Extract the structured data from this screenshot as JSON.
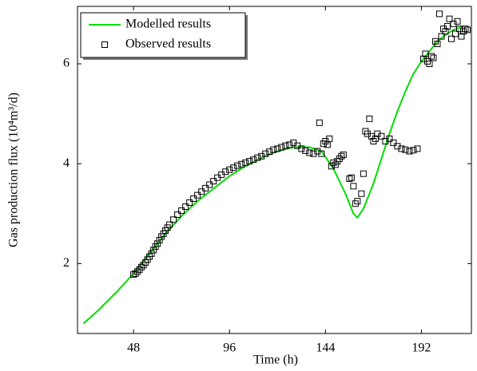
{
  "chart_data": {
    "type": "line",
    "xlabel": "Time (h)",
    "ylabel": "Gas production flux (10⁴m³/d)",
    "xlim": [
      20,
      217
    ],
    "xticks": [
      48,
      96,
      144,
      192
    ],
    "ylim": [
      0.6,
      7.15
    ],
    "yticks": [
      2,
      4,
      6
    ],
    "legend": "upper left",
    "series": [
      {
        "name": "Modelled results",
        "color": "#00dd00",
        "style": "line",
        "x": [
          23,
          30,
          40,
          48,
          56,
          64,
          72,
          80,
          88,
          96,
          104,
          112,
          120,
          128,
          136,
          142,
          148,
          154,
          158,
          160,
          163,
          168,
          172,
          176,
          180,
          184,
          188,
          192,
          196,
          200,
          204,
          208,
          213
        ],
        "values": [
          0.8,
          1.05,
          1.45,
          1.8,
          2.2,
          2.6,
          2.95,
          3.25,
          3.5,
          3.75,
          3.95,
          4.12,
          4.25,
          4.33,
          4.33,
          4.25,
          3.9,
          3.4,
          3.0,
          2.92,
          3.1,
          3.6,
          4.1,
          4.6,
          5.05,
          5.45,
          5.8,
          6.05,
          6.25,
          6.45,
          6.58,
          6.68,
          6.75
        ]
      },
      {
        "name": "Observed results",
        "color": "#000000",
        "style": "square",
        "x": [
          48,
          49,
          50,
          51,
          52,
          53,
          54,
          55,
          56,
          57,
          58,
          59,
          60,
          61,
          62,
          63,
          64,
          65,
          66,
          68,
          70,
          72,
          74,
          76,
          78,
          80,
          82,
          84,
          86,
          88,
          90,
          92,
          94,
          96,
          98,
          100,
          102,
          104,
          106,
          108,
          110,
          112,
          114,
          116,
          118,
          120,
          122,
          124,
          126,
          128,
          130,
          132,
          134,
          136,
          138,
          140,
          141,
          142,
          143,
          144,
          145,
          146,
          147,
          148,
          149,
          150,
          151,
          152,
          153,
          156,
          157,
          158,
          159,
          160,
          162,
          163,
          164,
          165,
          166,
          167,
          168,
          169,
          170,
          172,
          174,
          176,
          178,
          180,
          182,
          184,
          186,
          188,
          190,
          193,
          194,
          195,
          196,
          197,
          198,
          199,
          200,
          201,
          202,
          203,
          204,
          205,
          206,
          207,
          208,
          209,
          210,
          211,
          212,
          213,
          214,
          215
        ],
        "values": [
          1.78,
          1.8,
          1.84,
          1.88,
          1.93,
          1.97,
          2.02,
          2.08,
          2.14,
          2.2,
          2.27,
          2.34,
          2.4,
          2.47,
          2.54,
          2.6,
          2.66,
          2.72,
          2.78,
          2.88,
          2.98,
          3.06,
          3.14,
          3.22,
          3.3,
          3.37,
          3.44,
          3.51,
          3.58,
          3.65,
          3.72,
          3.78,
          3.84,
          3.88,
          3.92,
          3.96,
          3.99,
          4.02,
          4.05,
          4.08,
          4.12,
          4.15,
          4.2,
          4.24,
          4.28,
          4.3,
          4.33,
          4.36,
          4.38,
          4.42,
          4.36,
          4.3,
          4.26,
          4.22,
          4.2,
          4.25,
          4.82,
          4.2,
          4.4,
          4.45,
          4.38,
          4.5,
          3.95,
          4.02,
          3.98,
          4.05,
          4.1,
          4.15,
          4.18,
          3.7,
          3.72,
          3.55,
          3.2,
          3.25,
          3.4,
          3.8,
          4.65,
          4.6,
          4.9,
          4.55,
          4.45,
          4.5,
          4.6,
          4.55,
          4.45,
          4.5,
          4.42,
          4.35,
          4.3,
          4.28,
          4.25,
          4.27,
          4.3,
          6.1,
          6.2,
          6.05,
          6.0,
          6.15,
          6.12,
          6.45,
          6.4,
          7.0,
          6.55,
          6.7,
          6.65,
          6.75,
          6.9,
          6.5,
          6.8,
          6.6,
          6.85,
          6.7,
          6.55,
          6.65,
          6.7,
          6.68
        ]
      }
    ]
  }
}
